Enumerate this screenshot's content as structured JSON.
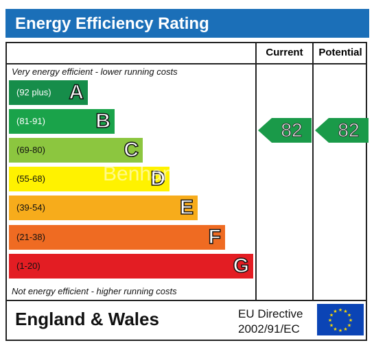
{
  "title": "Energy Efficiency Rating",
  "columns": {
    "current": "Current",
    "potential": "Potential"
  },
  "notes": {
    "top": "Very energy efficient - lower running costs",
    "bottom": "Not energy efficient - higher running costs"
  },
  "bands": [
    {
      "letter": "A",
      "range": "(92 plus)",
      "color": "#168d4a",
      "range_color": "#ffffff"
    },
    {
      "letter": "B",
      "range": "(81-91)",
      "color": "#1aa34a",
      "range_color": "#ffffff"
    },
    {
      "letter": "C",
      "range": "(69-80)",
      "color": "#8cc63f",
      "range_color": "#111111"
    },
    {
      "letter": "D",
      "range": "(55-68)",
      "color": "#fff200",
      "range_color": "#111111"
    },
    {
      "letter": "E",
      "range": "(39-54)",
      "color": "#f7ac1b",
      "range_color": "#111111"
    },
    {
      "letter": "F",
      "range": "(21-38)",
      "color": "#ef6b22",
      "range_color": "#111111"
    },
    {
      "letter": "G",
      "range": "(1-20)",
      "color": "#e31d23",
      "range_color": "#111111"
    }
  ],
  "ratings": {
    "current": "82",
    "potential": "82"
  },
  "footer": {
    "region": "England & Wales",
    "directive_line1": "EU Directive",
    "directive_line2": "2002/91/EC"
  },
  "watermark": "Benham"
}
